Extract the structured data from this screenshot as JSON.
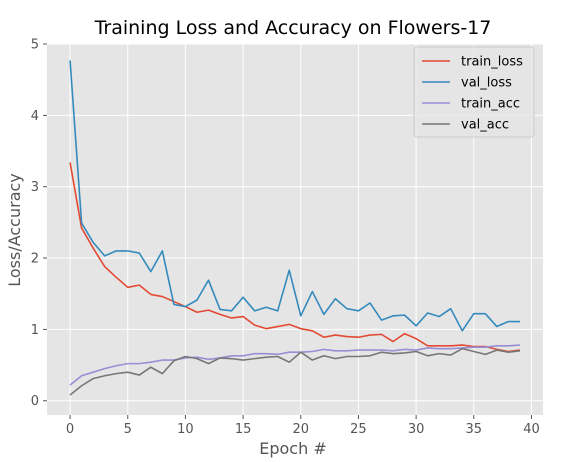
{
  "chart_data": {
    "type": "line",
    "title": "Training Loss and Accuracy on Flowers-17",
    "xlabel": "Epoch #",
    "ylabel": "Loss/Accuracy",
    "xlim": [
      -2,
      41
    ],
    "ylim": [
      -0.2,
      5.0
    ],
    "xticks": [
      0,
      5,
      10,
      15,
      20,
      25,
      30,
      35,
      40
    ],
    "yticks": [
      0,
      1,
      2,
      3,
      4,
      5
    ],
    "grid": true,
    "legend_position": "top-right",
    "x": [
      0,
      1,
      2,
      3,
      4,
      5,
      6,
      7,
      8,
      9,
      10,
      11,
      12,
      13,
      14,
      15,
      16,
      17,
      18,
      19,
      20,
      21,
      22,
      23,
      24,
      25,
      26,
      27,
      28,
      29,
      30,
      31,
      32,
      33,
      34,
      35,
      36,
      37,
      38,
      39
    ],
    "series": [
      {
        "name": "train_loss",
        "color": "#E24A33",
        "values": [
          3.34,
          2.42,
          2.14,
          1.88,
          1.73,
          1.59,
          1.62,
          1.49,
          1.46,
          1.39,
          1.32,
          1.24,
          1.27,
          1.21,
          1.16,
          1.18,
          1.06,
          1.01,
          1.04,
          1.07,
          1.01,
          0.98,
          0.89,
          0.92,
          0.9,
          0.89,
          0.92,
          0.93,
          0.83,
          0.94,
          0.87,
          0.77,
          0.77,
          0.77,
          0.78,
          0.76,
          0.76,
          0.72,
          0.69,
          0.71
        ]
      },
      {
        "name": "val_loss",
        "color": "#348ABD",
        "values": [
          4.77,
          2.49,
          2.22,
          2.03,
          2.1,
          2.1,
          2.07,
          1.81,
          2.1,
          1.35,
          1.32,
          1.41,
          1.69,
          1.28,
          1.26,
          1.45,
          1.26,
          1.31,
          1.26,
          1.83,
          1.19,
          1.53,
          1.21,
          1.43,
          1.29,
          1.26,
          1.37,
          1.13,
          1.19,
          1.2,
          1.05,
          1.23,
          1.18,
          1.29,
          0.98,
          1.22,
          1.22,
          1.04,
          1.11,
          1.11
        ]
      },
      {
        "name": "train_acc",
        "color": "#988ED5",
        "values": [
          0.22,
          0.35,
          0.4,
          0.45,
          0.49,
          0.52,
          0.52,
          0.54,
          0.57,
          0.57,
          0.6,
          0.61,
          0.58,
          0.6,
          0.63,
          0.63,
          0.66,
          0.66,
          0.65,
          0.68,
          0.68,
          0.69,
          0.72,
          0.7,
          0.7,
          0.71,
          0.71,
          0.71,
          0.7,
          0.72,
          0.71,
          0.74,
          0.73,
          0.73,
          0.74,
          0.75,
          0.75,
          0.77,
          0.77,
          0.78
        ]
      },
      {
        "name": "val_acc",
        "color": "#777777",
        "values": [
          0.08,
          0.21,
          0.31,
          0.35,
          0.38,
          0.4,
          0.36,
          0.47,
          0.38,
          0.56,
          0.62,
          0.59,
          0.52,
          0.6,
          0.59,
          0.57,
          0.59,
          0.61,
          0.62,
          0.54,
          0.68,
          0.57,
          0.63,
          0.59,
          0.62,
          0.62,
          0.63,
          0.68,
          0.66,
          0.67,
          0.69,
          0.63,
          0.66,
          0.64,
          0.73,
          0.69,
          0.65,
          0.71,
          0.68,
          0.7
        ]
      }
    ]
  }
}
